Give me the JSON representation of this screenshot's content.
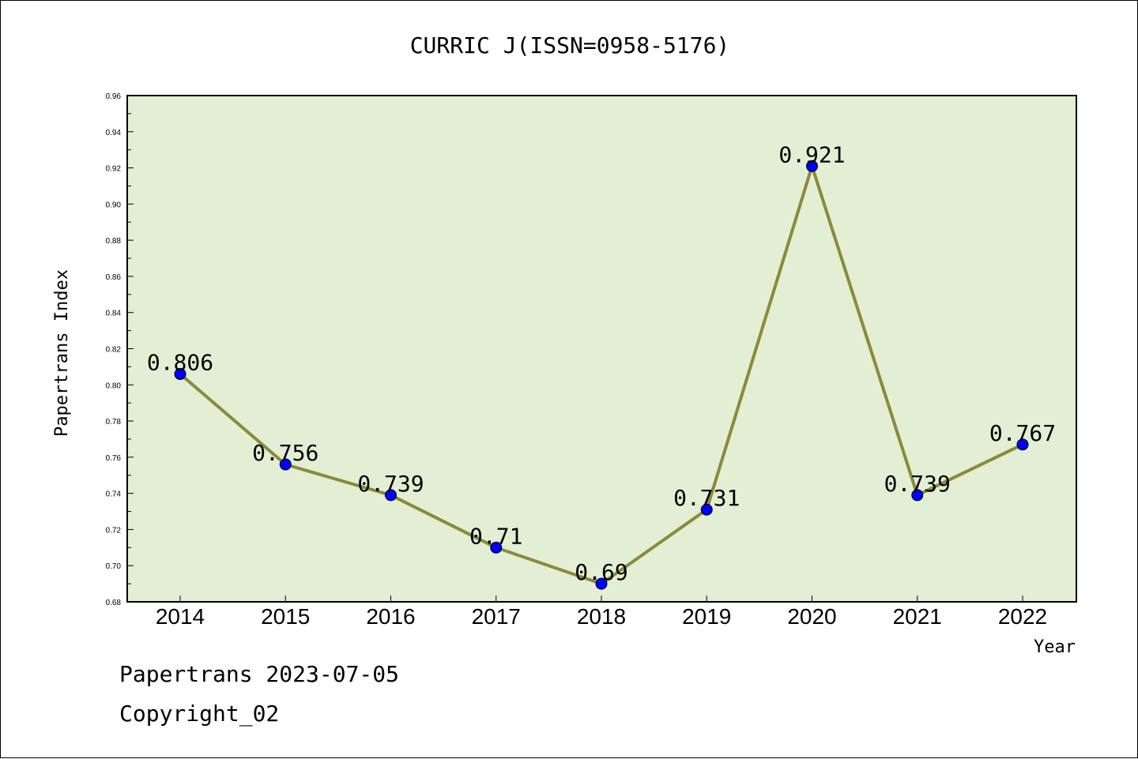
{
  "footer": {
    "source": "Papertrans 2023-07-05",
    "copyright": "Copyright_02"
  },
  "colors": {
    "plot_bg": "#e2efd4",
    "line": "#8b8a3c",
    "marker": "#0000ff"
  },
  "chart_data": {
    "type": "line",
    "title": "CURRIC J(ISSN=0958-5176)",
    "xlabel": "Year",
    "ylabel": "Papertrans Index",
    "categories": [
      "2014",
      "2015",
      "2016",
      "2017",
      "2018",
      "2019",
      "2020",
      "2021",
      "2022"
    ],
    "series": [
      {
        "values": [
          0.806,
          0.756,
          0.739,
          0.71,
          0.69,
          0.731,
          0.921,
          0.739,
          0.767
        ],
        "labels": [
          "0.806",
          "0.756",
          "0.739",
          "0.71",
          "0.69",
          "0.731",
          "0.921",
          "0.739",
          "0.767"
        ]
      }
    ],
    "ylim": [
      0.68,
      0.96
    ],
    "yticks": [
      "0.68",
      "0.70",
      "0.72",
      "0.74",
      "0.76",
      "0.78",
      "0.80",
      "0.82",
      "0.84",
      "0.86",
      "0.88",
      "0.90",
      "0.92",
      "0.94",
      "0.96"
    ],
    "grid": false,
    "legend": "none"
  }
}
